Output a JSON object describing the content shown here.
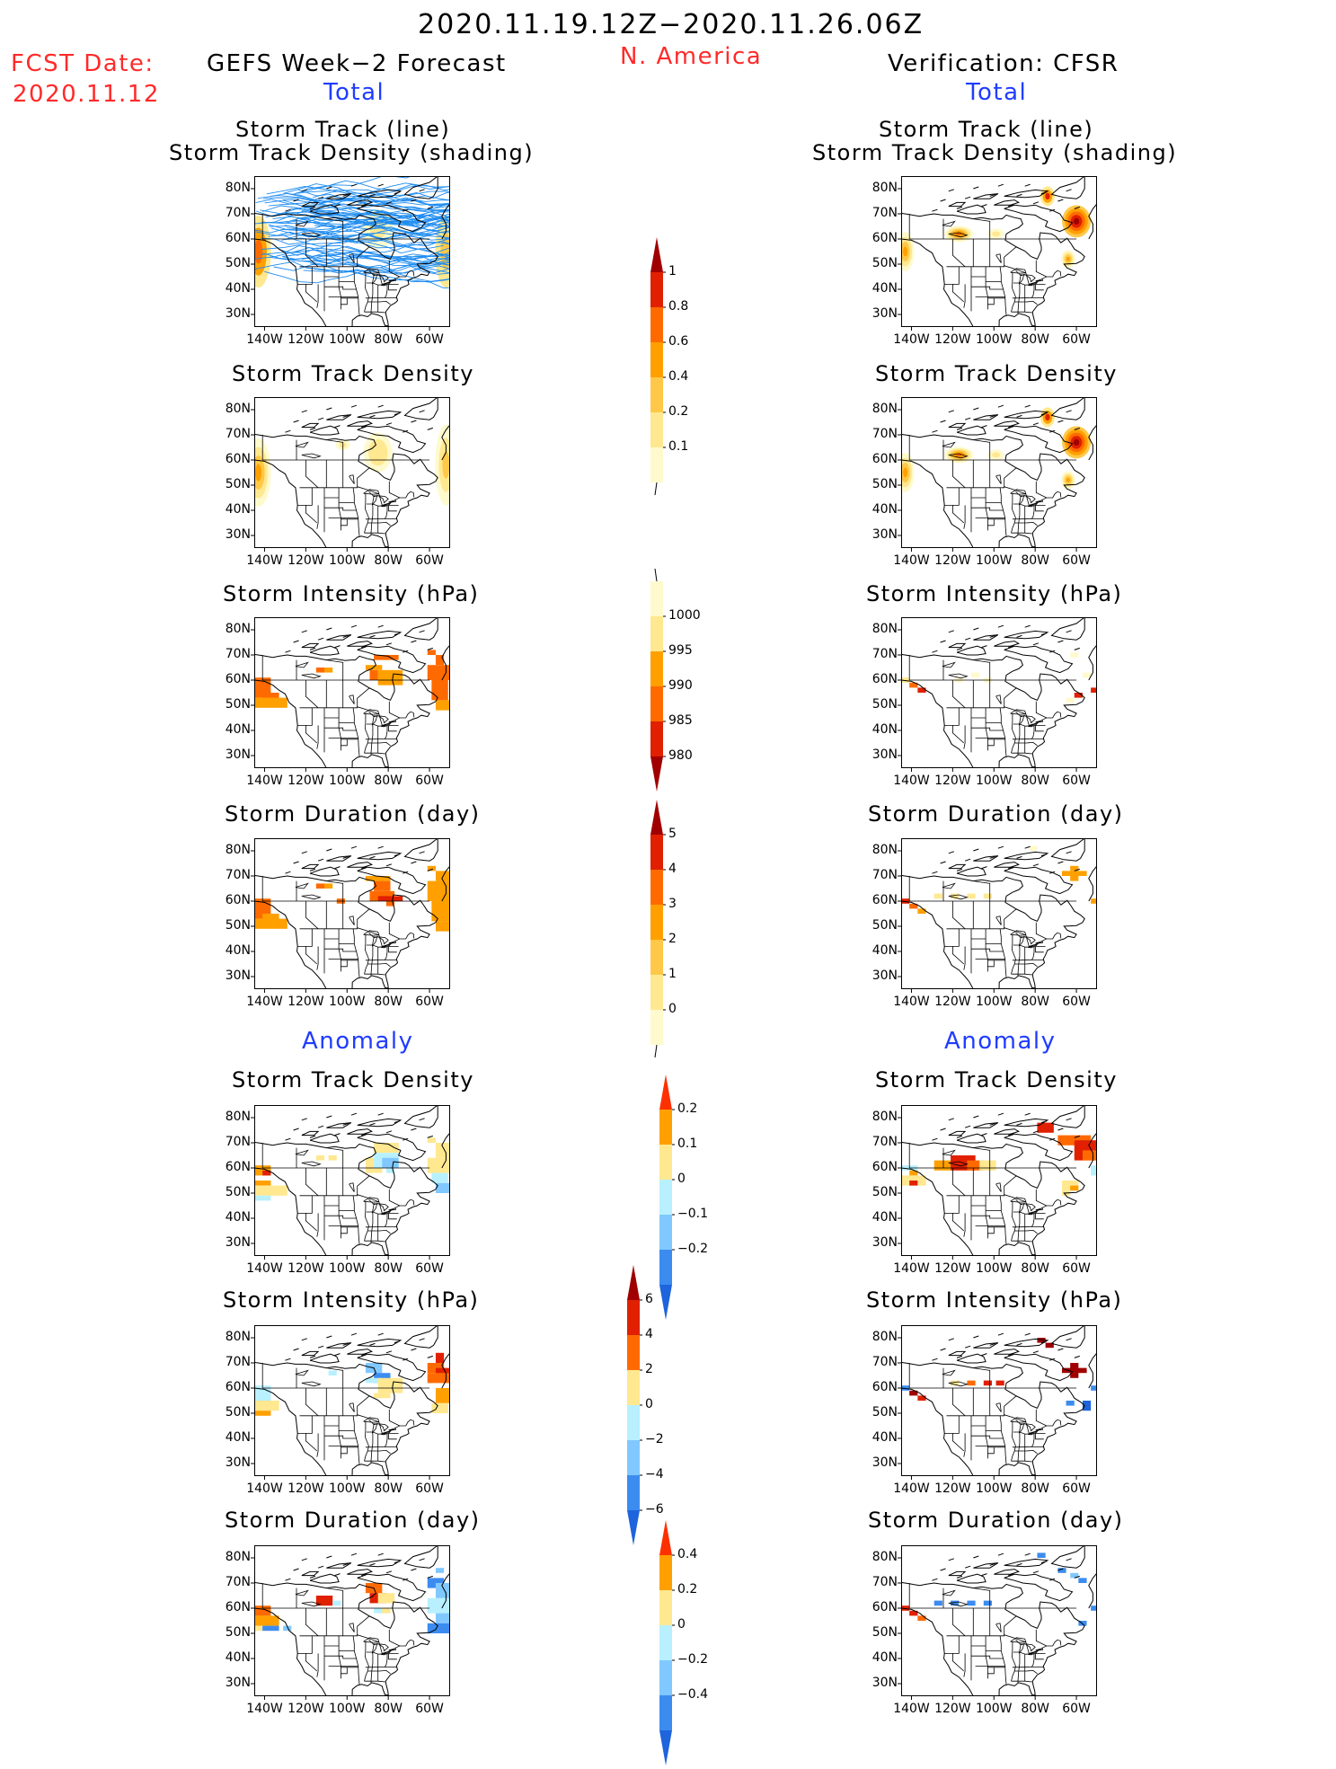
{
  "header": {
    "period": "2020.11.19.12Z−2020.11.26.06Z",
    "region": "N. America",
    "fcst_label": "FCST Date:",
    "fcst_date": "2020.11.12",
    "left_title": "GEFS Week−2 Forecast",
    "right_title": "Verification: CFSR",
    "total_label": "Total",
    "anomaly_label": "Anomaly"
  },
  "panel_titles": {
    "track_line": "Storm Track (line)",
    "track_shading": "Storm Track Density (shading)",
    "density": "Storm Track Density",
    "intensity": "Storm Intensity (hPa)",
    "duration": "Storm Duration (day)"
  },
  "axes": {
    "lat_labels": [
      "80N",
      "70N",
      "60N",
      "50N",
      "40N",
      "30N"
    ],
    "lon_labels": [
      "140W",
      "120W",
      "100W",
      "80W",
      "60W"
    ]
  },
  "colorbars": {
    "total_density": {
      "labels": [
        "1",
        "0.8",
        "0.6",
        "0.4",
        "0.2",
        "0.1"
      ],
      "colors": [
        "#a00000",
        "#e02000",
        "#ff6a00",
        "#ffa000",
        "#ffc848",
        "#ffe890",
        "#fffacd"
      ]
    },
    "total_intensity": {
      "labels": [
        "1000",
        "995",
        "990",
        "985",
        "980"
      ],
      "colors": [
        "#fffacd",
        "#ffe890",
        "#ffa000",
        "#ff6a00",
        "#e02000",
        "#a00000"
      ]
    },
    "total_duration": {
      "labels": [
        "5",
        "4",
        "3",
        "2",
        "1",
        "0"
      ],
      "colors": [
        "#a00000",
        "#e02000",
        "#ff6a00",
        "#ffa000",
        "#ffc848",
        "#ffe890",
        "#fffacd"
      ]
    },
    "anom_density": {
      "labels": [
        "0.2",
        "0.1",
        "0",
        "−0.1",
        "−0.2"
      ],
      "colors": [
        "#ff3000",
        "#ffa000",
        "#ffe890",
        "#b8f0ff",
        "#80c8ff",
        "#3c8cf0",
        "#1e64dc"
      ]
    },
    "anom_intensity": {
      "labels": [
        "6",
        "4",
        "2",
        "0",
        "−2",
        "−4",
        "−6"
      ],
      "colors": [
        "#a00000",
        "#e02000",
        "#ff6a00",
        "#ffe890",
        "#b8f0ff",
        "#80c8ff",
        "#3c8cf0",
        "#1e64dc"
      ]
    },
    "anom_duration": {
      "labels": [
        "0.4",
        "0.2",
        "0",
        "−0.2",
        "−0.4"
      ],
      "colors": [
        "#ff3000",
        "#ffa000",
        "#ffe890",
        "#b8f0ff",
        "#80c8ff",
        "#3c8cf0",
        "#1e64dc"
      ]
    }
  },
  "palette": {
    "map_line": "#000000",
    "track_line": "#1e8cf0",
    "title_blue": "#1f3cff",
    "title_red": "#ff2a2a"
  }
}
